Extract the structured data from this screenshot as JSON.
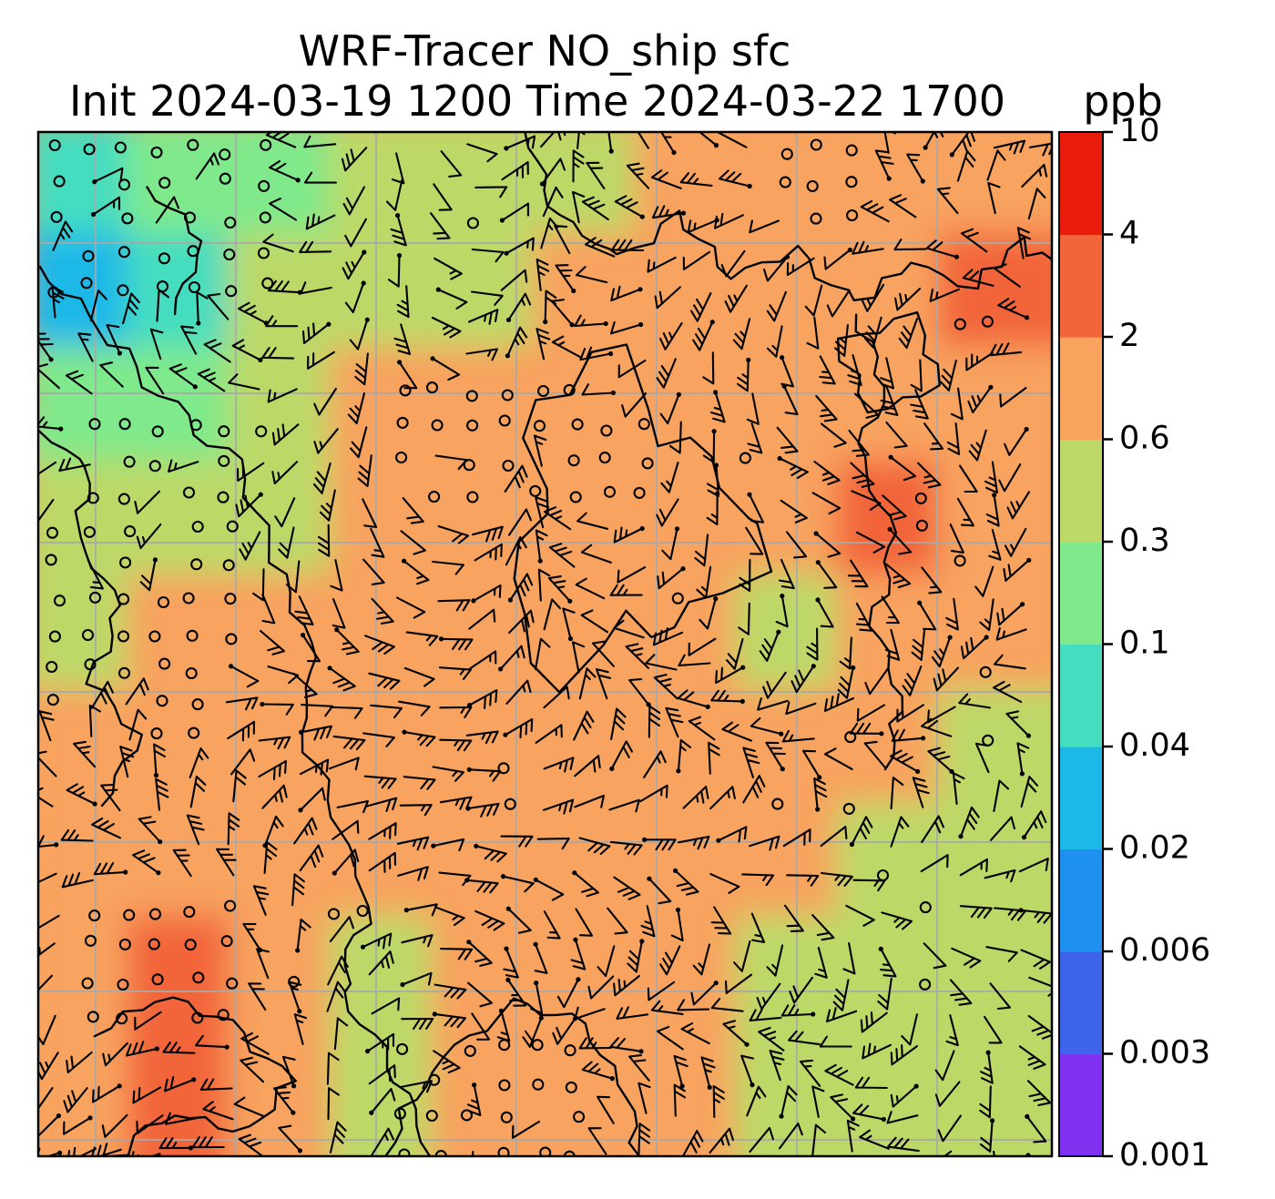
{
  "title": {
    "line1": "WRF-Tracer NO_ship sfc",
    "line2": "Init 2024-03-19 1200 Time 2024-03-22 1700",
    "colorbar_label": "ppb"
  },
  "chart_data": {
    "type": "heatmap",
    "title": "WRF-Tracer NO_ship sfc",
    "subtitle": "Init 2024-03-19 1200 Time 2024-03-22 1700",
    "units": "ppb",
    "variable": "NO_ship surface concentration",
    "overlays": [
      "wind-barbs",
      "calm-wind-circles",
      "coastlines",
      "lat-lon-gridlines"
    ],
    "grid": {
      "n_vertical_lines": 7,
      "n_horizontal_lines": 7,
      "color": "#a9a9a9"
    },
    "colorbar": {
      "orientation": "vertical",
      "position": "right",
      "levels": [
        0.001,
        0.003,
        0.006,
        0.02,
        0.04,
        0.1,
        0.3,
        0.6,
        2,
        4,
        10
      ],
      "tick_labels": [
        "0.001",
        "0.003",
        "0.006",
        "0.02",
        "0.04",
        "0.1",
        "0.3",
        "0.6",
        "2",
        "4",
        "10"
      ],
      "colors": [
        "#8032f0",
        "#3e64ec",
        "#1e90f0",
        "#1cb8e8",
        "#44ddc0",
        "#7fe98b",
        "#bcd968",
        "#f8a35e",
        "#f2653a",
        "#e81b0c"
      ]
    },
    "field": {
      "description": "Approximate NO_ship concentration (ppb) read from the filled contours on a coarse 10x9 grid, rows listed top to bottom, columns left to right",
      "values": [
        [
          0.06,
          0.12,
          0.25,
          0.4,
          0.4,
          0.5,
          1.0,
          1.0,
          1.0,
          1.0
        ],
        [
          0.03,
          0.05,
          0.3,
          0.35,
          0.5,
          1.0,
          1.0,
          1.0,
          1.0,
          3.0
        ],
        [
          0.15,
          0.25,
          0.35,
          1.0,
          1.0,
          1.0,
          1.0,
          1.0,
          1.0,
          1.5
        ],
        [
          0.3,
          0.3,
          0.5,
          1.0,
          1.0,
          1.0,
          1.0,
          1.0,
          2.5,
          1.0
        ],
        [
          0.45,
          1.0,
          1.0,
          1.0,
          1.0,
          1.0,
          1.0,
          0.5,
          1.5,
          1.0
        ],
        [
          1.0,
          1.0,
          1.0,
          1.0,
          1.0,
          1.0,
          1.0,
          1.0,
          1.0,
          0.5
        ],
        [
          1.0,
          1.0,
          1.0,
          1.0,
          1.0,
          1.0,
          1.0,
          0.8,
          0.45,
          0.4
        ],
        [
          1.0,
          2.5,
          1.0,
          0.5,
          1.0,
          1.0,
          1.0,
          0.45,
          0.4,
          0.4
        ],
        [
          1.0,
          2.5,
          1.0,
          0.5,
          1.0,
          1.0,
          0.8,
          0.4,
          0.4,
          0.4
        ]
      ]
    },
    "wind": {
      "type": "barbs",
      "color": "#000000",
      "calm_symbol": "open-circle",
      "note": "Clusters of calm-wind circles in NW quadrant, west-center, map center, SW corner and south-center"
    }
  }
}
